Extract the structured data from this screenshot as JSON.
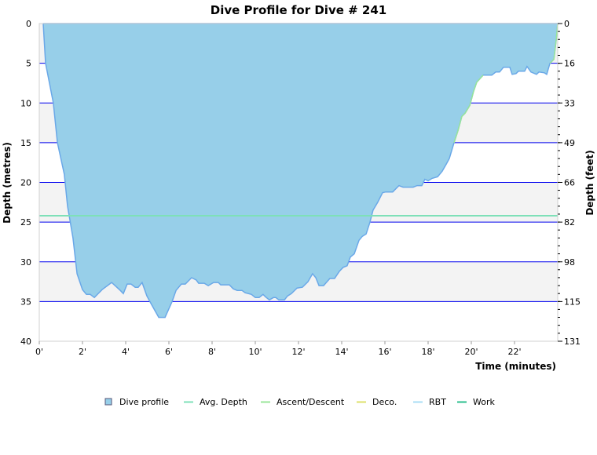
{
  "chart_data": {
    "type": "area",
    "title": "Dive Profile for Dive # 241",
    "xlabel": "Time (minutes)",
    "ylabel": "Depth (metres)",
    "ylabel_right": "Depth (feet)",
    "xlim": [
      0,
      24
    ],
    "ylim": [
      0,
      40
    ],
    "y_inverted": true,
    "x_ticks": [
      0,
      2,
      4,
      6,
      8,
      10,
      12,
      14,
      16,
      18,
      20,
      22
    ],
    "x_tick_labels": [
      "0'",
      "2'",
      "4'",
      "6'",
      "8'",
      "10'",
      "12'",
      "14'",
      "16'",
      "18'",
      "20'",
      "22'"
    ],
    "y_ticks": [
      0,
      5,
      10,
      15,
      20,
      25,
      30,
      35,
      40
    ],
    "y_tick_labels": [
      "0",
      "5",
      "10",
      "15",
      "20",
      "25",
      "30",
      "35",
      "40"
    ],
    "y_right_tick_labels": [
      "0",
      "16",
      "33",
      "49",
      "66",
      "82",
      "98",
      "115",
      "131"
    ],
    "grid": true,
    "legend_position": "bottom",
    "legend": [
      {
        "label": "Dive profile",
        "color": "#97cfe9",
        "kind": "box"
      },
      {
        "label": "Avg. Depth",
        "color": "#7ee0b8",
        "kind": "line"
      },
      {
        "label": "Ascent/Descent",
        "color": "#99e699",
        "kind": "line"
      },
      {
        "label": "Deco.",
        "color": "#dde06a",
        "kind": "line"
      },
      {
        "label": "RBT",
        "color": "#a8def5",
        "kind": "line"
      },
      {
        "label": "Work",
        "color": "#2bbf8e",
        "kind": "line"
      }
    ],
    "avg_depth": 24.2,
    "ascent_segments": [
      [
        19.2,
        20.55
      ],
      [
        23.6,
        24.0
      ]
    ],
    "series": [
      {
        "name": "Dive profile",
        "time": [
          0.18,
          0.29,
          0.65,
          0.84,
          1.16,
          1.31,
          1.56,
          1.75,
          2.0,
          2.18,
          2.36,
          2.55,
          2.91,
          3.35,
          3.75,
          3.89,
          4.07,
          4.25,
          4.44,
          4.58,
          4.76,
          4.98,
          5.2,
          5.53,
          5.82,
          6.15,
          6.33,
          6.58,
          6.76,
          7.05,
          7.27,
          7.38,
          7.64,
          7.82,
          8.07,
          8.29,
          8.4,
          8.8,
          8.98,
          9.16,
          9.38,
          9.53,
          9.82,
          10.0,
          10.18,
          10.36,
          10.47,
          10.65,
          10.84,
          10.95,
          11.09,
          11.35,
          11.49,
          11.67,
          11.93,
          12.18,
          12.44,
          12.65,
          12.8,
          12.95,
          13.16,
          13.45,
          13.67,
          13.89,
          14.07,
          14.25,
          14.4,
          14.58,
          14.8,
          14.95,
          15.13,
          15.31,
          15.45,
          15.67,
          15.89,
          16.04,
          16.36,
          16.65,
          16.84,
          17.31,
          17.49,
          17.71,
          17.85,
          18.0,
          18.18,
          18.44,
          18.65,
          18.84,
          18.98,
          19.2,
          19.38,
          19.56,
          19.71,
          19.93,
          20.11,
          20.25,
          20.55,
          20.95,
          21.13,
          21.31,
          21.49,
          21.78,
          21.89,
          22.07,
          22.18,
          22.47,
          22.58,
          22.76,
          23.02,
          23.13,
          23.38,
          23.49,
          23.64,
          23.82,
          23.93,
          24.0
        ],
        "depth": [
          0,
          5,
          10,
          15,
          19,
          23,
          27,
          31.5,
          33.5,
          34.1,
          34.1,
          34.5,
          33.5,
          32.6,
          33.6,
          34,
          32.8,
          32.8,
          33.2,
          33.2,
          32.6,
          34.3,
          35.4,
          37,
          37,
          35,
          33.6,
          32.8,
          32.8,
          32,
          32.3,
          32.7,
          32.7,
          33,
          32.6,
          32.6,
          32.9,
          32.9,
          33.4,
          33.6,
          33.6,
          33.9,
          34.1,
          34.5,
          34.5,
          34.1,
          34.4,
          34.8,
          34.5,
          34.5,
          34.8,
          34.8,
          34.3,
          34,
          33.3,
          33.2,
          32.5,
          31.5,
          32,
          33,
          33,
          32.1,
          32.1,
          31.2,
          30.7,
          30.5,
          29.4,
          29,
          27.3,
          26.8,
          26.5,
          25,
          23.5,
          22.5,
          21.3,
          21.2,
          21.2,
          20.4,
          20.6,
          20.6,
          20.4,
          20.4,
          19.6,
          19.8,
          19.5,
          19.3,
          18.6,
          17.7,
          17,
          15,
          13.5,
          11.7,
          11.3,
          10.3,
          8.5,
          7.4,
          6.5,
          6.5,
          6.1,
          6.1,
          5.5,
          5.5,
          6.4,
          6.3,
          6,
          6,
          5.4,
          6.1,
          6.4,
          6.1,
          6.2,
          6.4,
          5,
          4.5,
          2,
          0
        ]
      }
    ]
  }
}
